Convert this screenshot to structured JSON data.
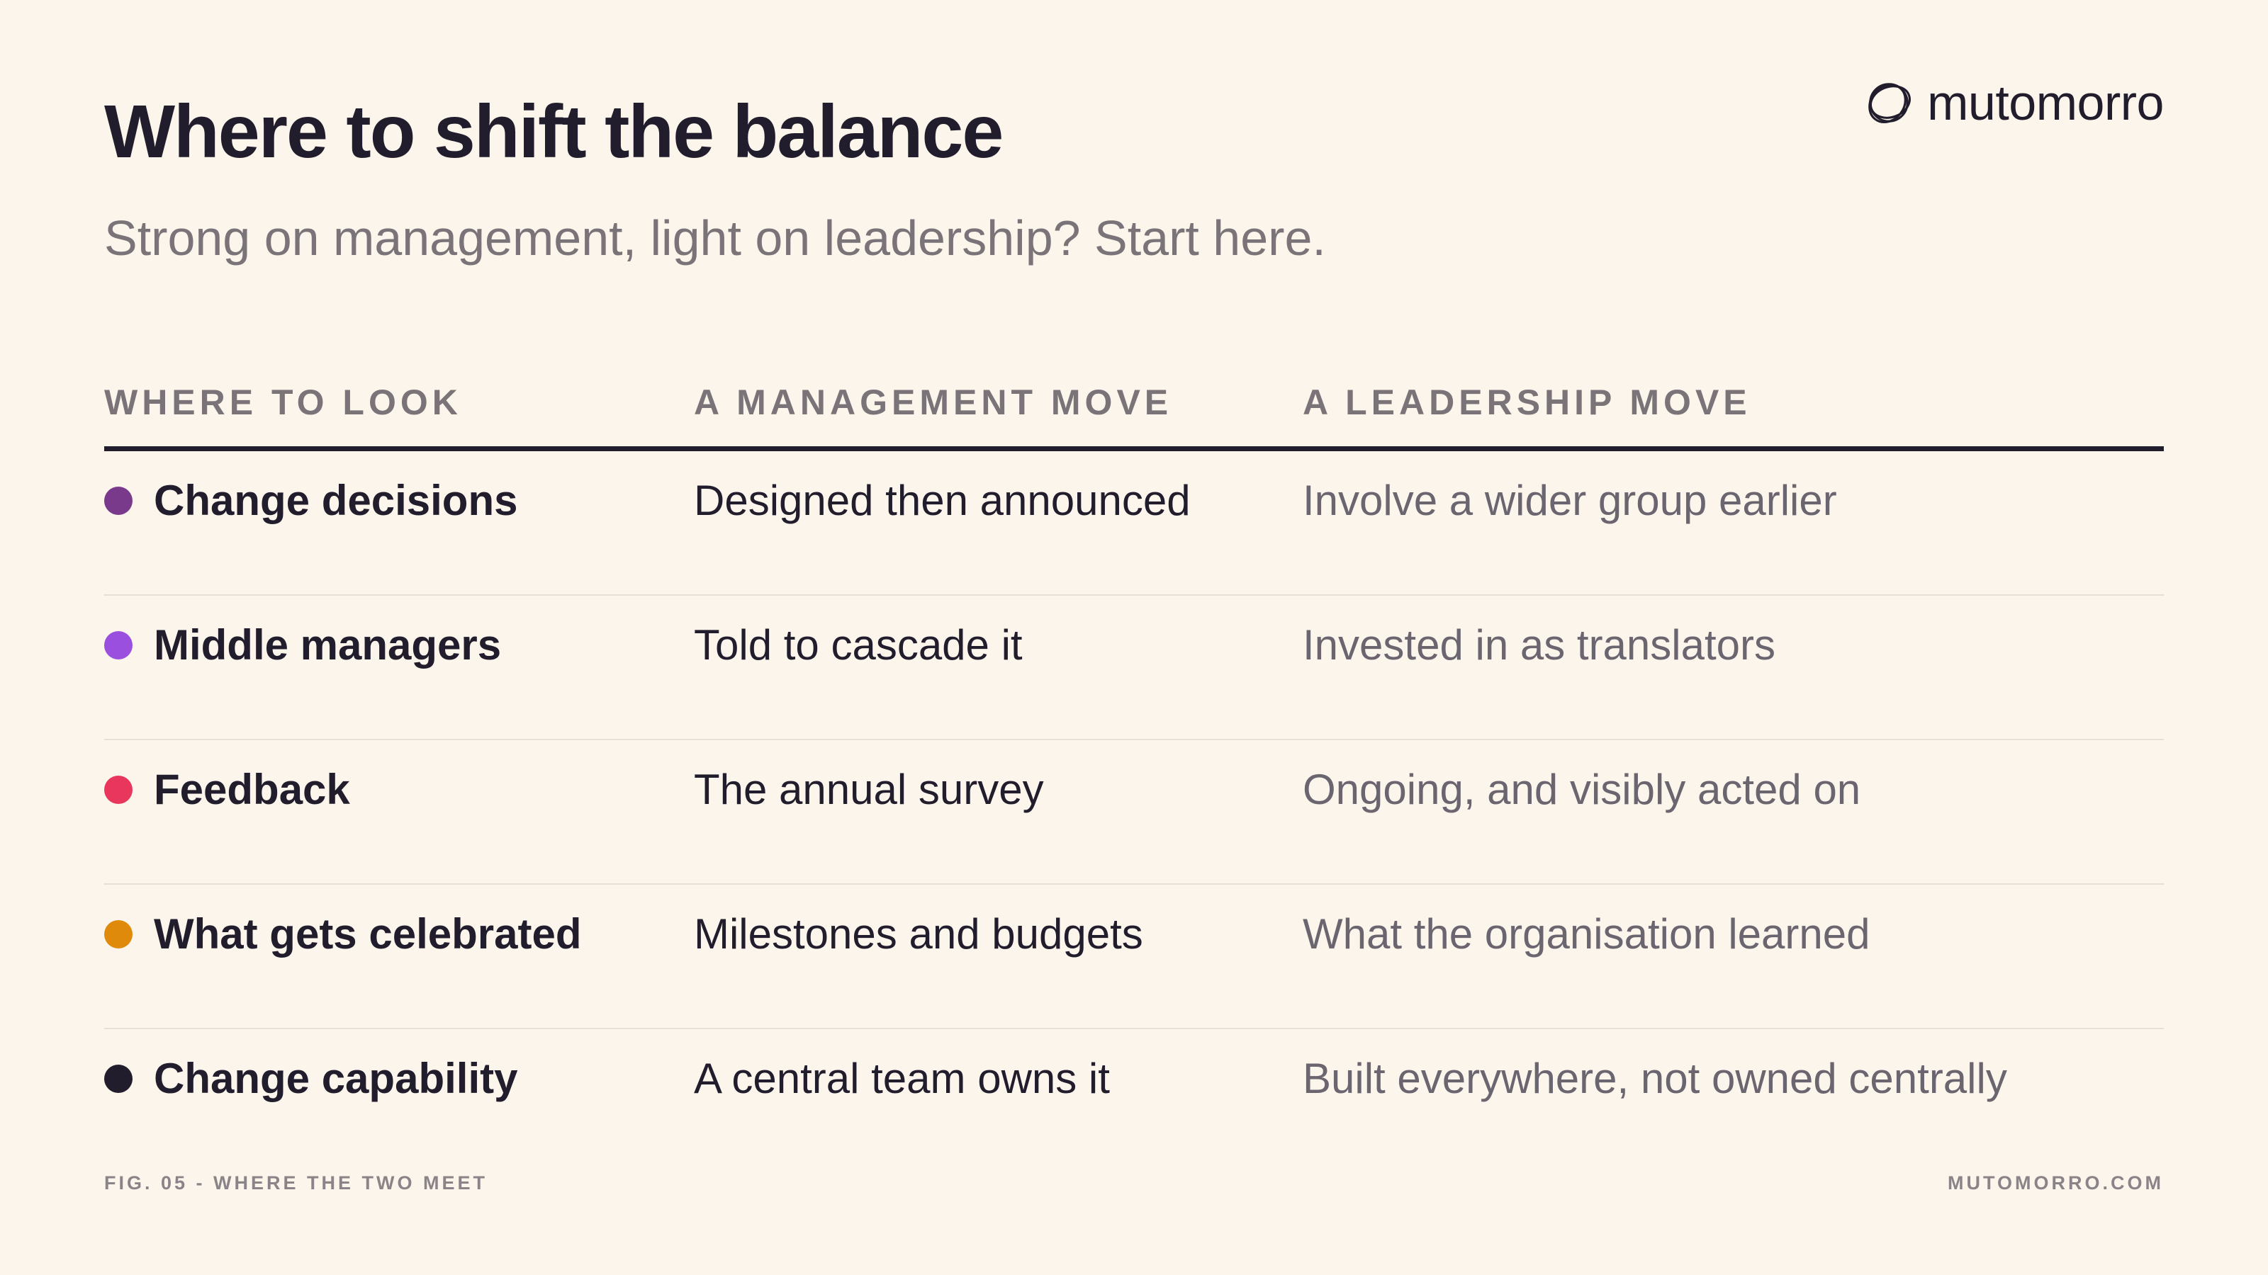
{
  "header": {
    "title": "Where to shift the balance",
    "subtitle": "Strong on management, light on leadership? Start here."
  },
  "brand": {
    "name": "mutomorro",
    "icon": "loop-circle-logo-icon"
  },
  "table": {
    "columns": [
      "WHERE TO LOOK",
      "A MANAGEMENT MOVE",
      "A LEADERSHIP MOVE"
    ],
    "rows": [
      {
        "area": "Change decisions",
        "management": "Designed then announced",
        "leadership": "Involve a wider group earlier",
        "color": "#7a3a8c"
      },
      {
        "area": "Middle managers",
        "management": "Told to cascade it",
        "leadership": "Invested in as translators",
        "color": "#9b4fdf"
      },
      {
        "area": "Feedback",
        "management": "The annual survey",
        "leadership": "Ongoing, and visibly acted on",
        "color": "#e8365d"
      },
      {
        "area": "What gets celebrated",
        "management": "Milestones and budgets",
        "leadership": "What the organisation learned",
        "color": "#e08a0b"
      },
      {
        "area": "Change capability",
        "management": "A central team owns it",
        "leadership": "Built everywhere, not owned centrally",
        "color": "#221d2c"
      }
    ]
  },
  "footer": {
    "left": "FIG. 05 - WHERE THE TWO MEET",
    "right": "MUTOMORRO.COM"
  },
  "colors": {
    "background": "#fbf5ec",
    "text": "#221d2c",
    "muted": "#7a7479"
  }
}
